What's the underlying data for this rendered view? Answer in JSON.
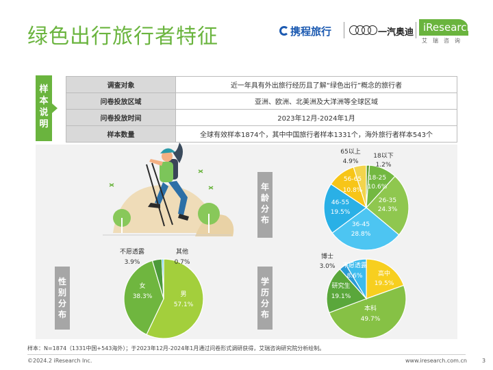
{
  "title": "绿色出行旅行者特征",
  "logos": {
    "ctrip": "携程旅行",
    "faw_audi": "一汽奥迪",
    "iresearch": "iResearch",
    "iresearch_sub": "艾瑞咨询"
  },
  "sample": {
    "label": "样本说明",
    "rows": [
      {
        "key": "调查对象",
        "value": "近一年具有外出旅行经历且了解“绿色出行”概念的旅行者"
      },
      {
        "key": "问卷投放区域",
        "value": "亚洲、欧洲、北美洲及大洋洲等全球区域"
      },
      {
        "key": "问卷投放时间",
        "value": "2023年12月-2024年1月"
      },
      {
        "key": "样本数量",
        "value": "全球有效样本1874个，其中中国旅行者样本1331个，海外旅行者样本543个"
      }
    ]
  },
  "labels": {
    "age": "年龄分布",
    "gender": "性别分布",
    "education": "学历分布"
  },
  "colors": {
    "accent_green": "#6ab43e",
    "label_gray": "#a6a6a6",
    "panel_bg": "#f2f2f2"
  },
  "chart_data": [
    {
      "type": "pie",
      "title": "年龄分布",
      "slices": [
        {
          "name": "18以下",
          "value": 1.2,
          "color": "#5a9e2f"
        },
        {
          "name": "18-25",
          "value": 10.6,
          "color": "#73b841"
        },
        {
          "name": "26-35",
          "value": 24.3,
          "color": "#8fc74f"
        },
        {
          "name": "36-45",
          "value": 28.8,
          "color": "#4dc5f2"
        },
        {
          "name": "46-55",
          "value": 19.5,
          "color": "#2ab0e6"
        },
        {
          "name": "56-65",
          "value": 10.8,
          "color": "#f7c518"
        },
        {
          "name": "65以上",
          "value": 4.9,
          "color": "#f2d44c"
        }
      ]
    },
    {
      "type": "pie",
      "title": "性别分布",
      "slices": [
        {
          "name": "男",
          "value": 57.1,
          "color": "#a3cf3c"
        },
        {
          "name": "女",
          "value": 38.3,
          "color": "#6fb63f"
        },
        {
          "name": "不愿透露",
          "value": 3.9,
          "color": "#4c9a3a"
        },
        {
          "name": "其他",
          "value": 0.7,
          "color": "#35b8ea"
        }
      ]
    },
    {
      "type": "pie",
      "title": "学历分布",
      "slices": [
        {
          "name": "高中",
          "value": 19.5,
          "color": "#f7cf1f"
        },
        {
          "name": "本科",
          "value": 49.7,
          "color": "#86c145"
        },
        {
          "name": "研究生",
          "value": 19.1,
          "color": "#5aa73b"
        },
        {
          "name": "博士",
          "value": 3.0,
          "color": "#2a9bd6"
        },
        {
          "name": "不愿透露",
          "value": 8.6,
          "color": "#3dbbed"
        }
      ]
    }
  ],
  "footnote": "样本：N=1874（1331中国+543海外）；于2023年12月-2024年1月通过问卷形式调研获得，艾瑞咨询研究院分析绘制。",
  "copyright": "©2024.2 iResearch Inc.",
  "site": "www.iresearch.com.cn",
  "page_number": "3"
}
